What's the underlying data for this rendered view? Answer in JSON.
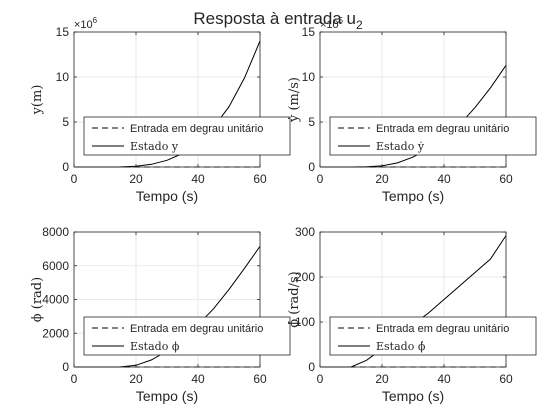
{
  "figure": {
    "title": "Resposta à entrada u",
    "title_subscript": "2",
    "background": "#ffffff"
  },
  "chart_data": [
    {
      "type": "line",
      "xlabel": "Tempo (s)",
      "ylabel": "y(m)",
      "xlim": [
        0,
        60
      ],
      "ylim": [
        0,
        15
      ],
      "xticks": [
        "0",
        "20",
        "40",
        "60"
      ],
      "yticks": [
        "0",
        "5",
        "10",
        "15"
      ],
      "y_multiplier": "10",
      "y_multiplier_exp": "6",
      "grid": true,
      "legend": [
        "Entrada em degrau unitário",
        "Estado y"
      ],
      "legend_position": "bottom-right",
      "series": [
        {
          "name": "Entrada em degrau unitário",
          "style": "dashed",
          "x": [
            0,
            60
          ],
          "y": [
            0,
            0
          ]
        },
        {
          "name": "Estado y",
          "style": "solid",
          "x": [
            0,
            10,
            15,
            20,
            25,
            30,
            35,
            40,
            45,
            50,
            55,
            60
          ],
          "y": [
            0,
            0,
            0.01,
            0.08,
            0.3,
            0.75,
            1.5,
            2.7,
            4.4,
            6.7,
            9.9,
            14.0
          ]
        }
      ]
    },
    {
      "type": "line",
      "xlabel": "Tempo (s)",
      "ylabel": "ẏ (m/s)",
      "xlim": [
        0,
        60
      ],
      "ylim": [
        0,
        15
      ],
      "xticks": [
        "0",
        "20",
        "40",
        "60"
      ],
      "yticks": [
        "0",
        "5",
        "10",
        "15"
      ],
      "y_multiplier": "10",
      "y_multiplier_exp": "5",
      "grid": true,
      "legend": [
        "Entrada em degrau unitário",
        "Estado ẏ"
      ],
      "legend_position": "bottom-right",
      "series": [
        {
          "name": "Entrada em degrau unitário",
          "style": "dashed",
          "x": [
            0,
            60
          ],
          "y": [
            0,
            0
          ]
        },
        {
          "name": "Estado ẏ",
          "style": "solid",
          "x": [
            0,
            10,
            15,
            20,
            25,
            30,
            35,
            40,
            45,
            50,
            55,
            60
          ],
          "y": [
            0,
            0,
            0.02,
            0.12,
            0.45,
            1.1,
            2.0,
            3.2,
            4.7,
            6.6,
            8.8,
            11.3
          ]
        }
      ]
    },
    {
      "type": "line",
      "xlabel": "Tempo (s)",
      "ylabel": "ϕ (rad)",
      "xlim": [
        0,
        60
      ],
      "ylim": [
        0,
        8000
      ],
      "xticks": [
        "0",
        "20",
        "40",
        "60"
      ],
      "yticks": [
        "0",
        "2000",
        "4000",
        "6000",
        "8000"
      ],
      "grid": true,
      "legend": [
        "Entrada em degrau unitário",
        "Estado ϕ"
      ],
      "legend_position": "bottom-right",
      "series": [
        {
          "name": "Entrada em degrau unitário",
          "style": "dashed",
          "x": [
            0,
            60
          ],
          "y": [
            0,
            0
          ]
        },
        {
          "name": "Estado ϕ",
          "style": "solid",
          "x": [
            0,
            10,
            15,
            20,
            25,
            30,
            35,
            40,
            45,
            50,
            55,
            60
          ],
          "y": [
            0,
            0,
            5,
            100,
            420,
            950,
            1650,
            2500,
            3450,
            4600,
            5850,
            7150
          ]
        }
      ]
    },
    {
      "type": "line",
      "xlabel": "Tempo (s)",
      "ylabel": "ϕ̇ (rad/s)",
      "xlim": [
        0,
        60
      ],
      "ylim": [
        0,
        300
      ],
      "xticks": [
        "0",
        "20",
        "40",
        "60"
      ],
      "yticks": [
        "0",
        "100",
        "200",
        "300"
      ],
      "grid": true,
      "legend": [
        "Entrada em degrau unitário",
        "Estado ϕ̇"
      ],
      "legend_position": "bottom-right",
      "series": [
        {
          "name": "Entrada em degrau unitário",
          "style": "dashed",
          "x": [
            0,
            60
          ],
          "y": [
            0,
            0
          ]
        },
        {
          "name": "Estado ϕ̇",
          "style": "solid",
          "x": [
            0,
            10,
            15,
            20,
            25,
            30,
            35,
            40,
            45,
            50,
            55,
            60
          ],
          "y": [
            0,
            0,
            15,
            40,
            65,
            95,
            120,
            150,
            180,
            210,
            240,
            292
          ]
        }
      ]
    }
  ]
}
